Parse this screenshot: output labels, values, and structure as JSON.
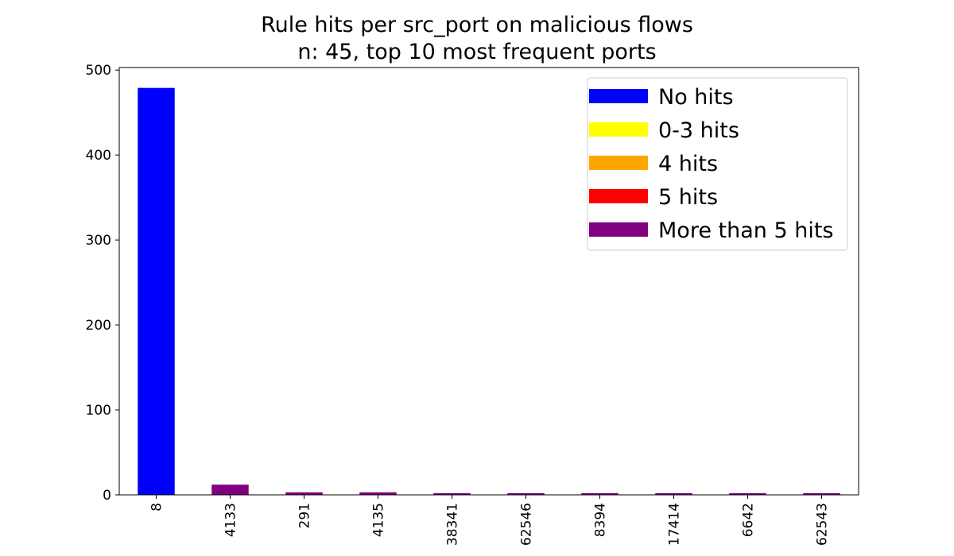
{
  "chart_data": {
    "type": "bar",
    "title": "Rule hits per src_port on malicious flows",
    "subtitle": "n: 45, top 10 most frequent ports",
    "xlabel": "",
    "ylabel": "",
    "categories": [
      "8",
      "4133",
      "291",
      "4135",
      "38341",
      "62546",
      "8394",
      "17414",
      "6642",
      "62543"
    ],
    "values": [
      479,
      12,
      3,
      3,
      2,
      2,
      2,
      2,
      2,
      2
    ],
    "bar_category": [
      "No hits",
      "More than 5 hits",
      "More than 5 hits",
      "More than 5 hits",
      "More than 5 hits",
      "More than 5 hits",
      "More than 5 hits",
      "More than 5 hits",
      "More than 5 hits",
      "More than 5 hits"
    ],
    "ylim": [
      0,
      503
    ],
    "yticks": [
      0,
      100,
      200,
      300,
      400,
      500
    ],
    "grid": false,
    "legend_position": "top-right",
    "legend": [
      {
        "label": "No hits",
        "color": "#0000ff"
      },
      {
        "label": "0-3 hits",
        "color": "#ffff00"
      },
      {
        "label": "4 hits",
        "color": "#ffa500"
      },
      {
        "label": "5 hits",
        "color": "#ff0000"
      },
      {
        "label": "More than 5 hits",
        "color": "#800080"
      }
    ]
  }
}
